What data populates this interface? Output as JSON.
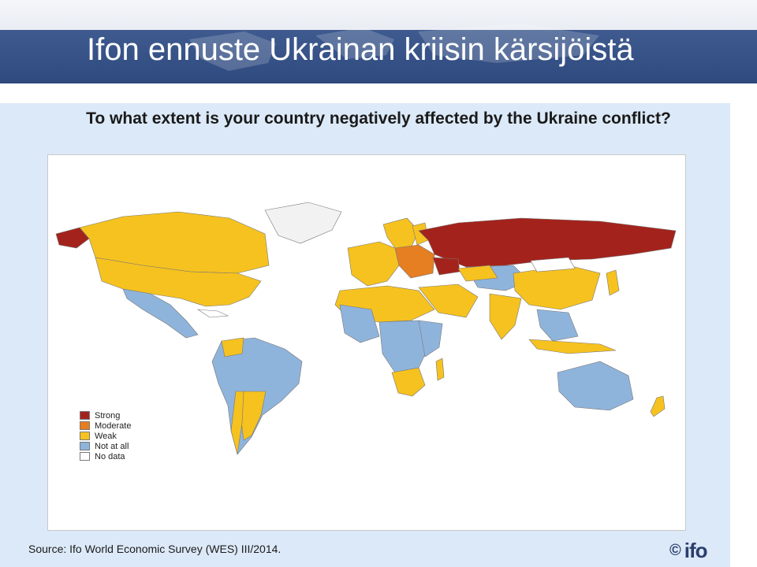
{
  "header": {
    "title": "Ifon ennuste Ukrainan kriisin kärsijöistä"
  },
  "map": {
    "question": "To what extent is your country negatively affected by the Ukraine conflict?",
    "legend": [
      {
        "label": "Strong",
        "color": "#a3231c"
      },
      {
        "label": "Moderate",
        "color": "#e67e22"
      },
      {
        "label": "Weak",
        "color": "#f6c21f"
      },
      {
        "label": "Not at all",
        "color": "#8fb4dc"
      },
      {
        "label": "No data",
        "color": "#ffffff"
      }
    ]
  },
  "footer": {
    "source": "Source: Ifo World Economic Survey (WES) III/2014.",
    "copyright_symbol": "©",
    "logo_text": "ifo"
  },
  "colors": {
    "banner": "#2f4a7e",
    "panel": "#dce9f8"
  }
}
